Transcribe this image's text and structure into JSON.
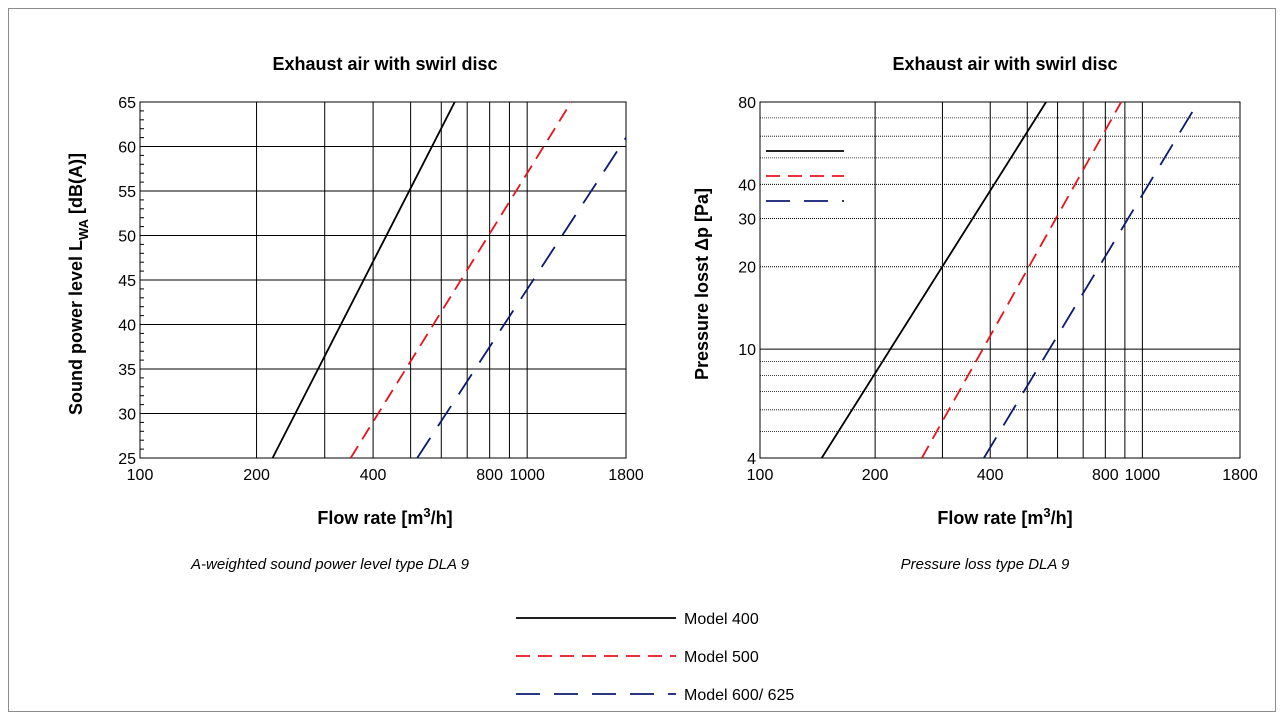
{
  "colors": {
    "model_400": "#000000",
    "model_500": "#e8141c",
    "model_600": "#0c1a6e"
  },
  "legend": [
    {
      "label": "Model 400",
      "style": "solid",
      "color": "#000000"
    },
    {
      "label": "Model 500",
      "style": "dashed",
      "color": "#e8141c"
    },
    {
      "label": "Model 600/ 625",
      "style": "long-dashed",
      "color": "#0c1a6e"
    }
  ],
  "chart_data": [
    {
      "type": "line",
      "title": "Exhaust air with swirl disc",
      "xlabel_main": "Flow rate [m",
      "xlabel_sup": "3",
      "xlabel_tail": "/h]",
      "ylabel_main": "Sound power level L",
      "ylabel_sub": "WA",
      "ylabel_tail": " [dB(A)]",
      "caption": "A-weighted sound power level type DLA 9",
      "x_scale": "log",
      "xlim": [
        100,
        1800
      ],
      "ylim": [
        25,
        65
      ],
      "x_ticks": [
        "100",
        "200",
        "400",
        "800",
        "1000",
        "1800"
      ],
      "y_ticks": [
        "25",
        "30",
        "35",
        "40",
        "45",
        "50",
        "55",
        "60",
        "65"
      ],
      "grid": true,
      "series": [
        {
          "name": "Model 400",
          "x": [
            220,
            650
          ],
          "y": [
            25,
            65
          ]
        },
        {
          "name": "Model 500",
          "x": [
            350,
            1300
          ],
          "y": [
            25,
            65
          ]
        },
        {
          "name": "Model 600/ 625",
          "x": [
            520,
            1800
          ],
          "y": [
            25,
            61
          ]
        }
      ]
    },
    {
      "type": "line",
      "title": "Exhaust air with swirl disc",
      "xlabel_main": "Flow rate [m",
      "xlabel_sup": "3",
      "xlabel_tail": "/h]",
      "ylabel": "Pressure losst Δp [Pa]",
      "caption": "Pressure loss type DLA 9",
      "x_scale": "log",
      "y_scale": "log",
      "xlim": [
        100,
        1800
      ],
      "ylim": [
        4,
        80
      ],
      "x_ticks": [
        "100",
        "200",
        "400",
        "800",
        "1000",
        "1800"
      ],
      "y_ticks": [
        "4",
        "10",
        "20",
        "30",
        "40",
        "80"
      ],
      "grid": true,
      "series": [
        {
          "name": "Model 400",
          "x": [
            145,
            560
          ],
          "y": [
            4,
            80
          ]
        },
        {
          "name": "Model 500",
          "x": [
            265,
            880
          ],
          "y": [
            4,
            80
          ]
        },
        {
          "name": "Model 600/ 625",
          "x": [
            385,
            1400
          ],
          "y": [
            4,
            80
          ]
        }
      ]
    }
  ]
}
